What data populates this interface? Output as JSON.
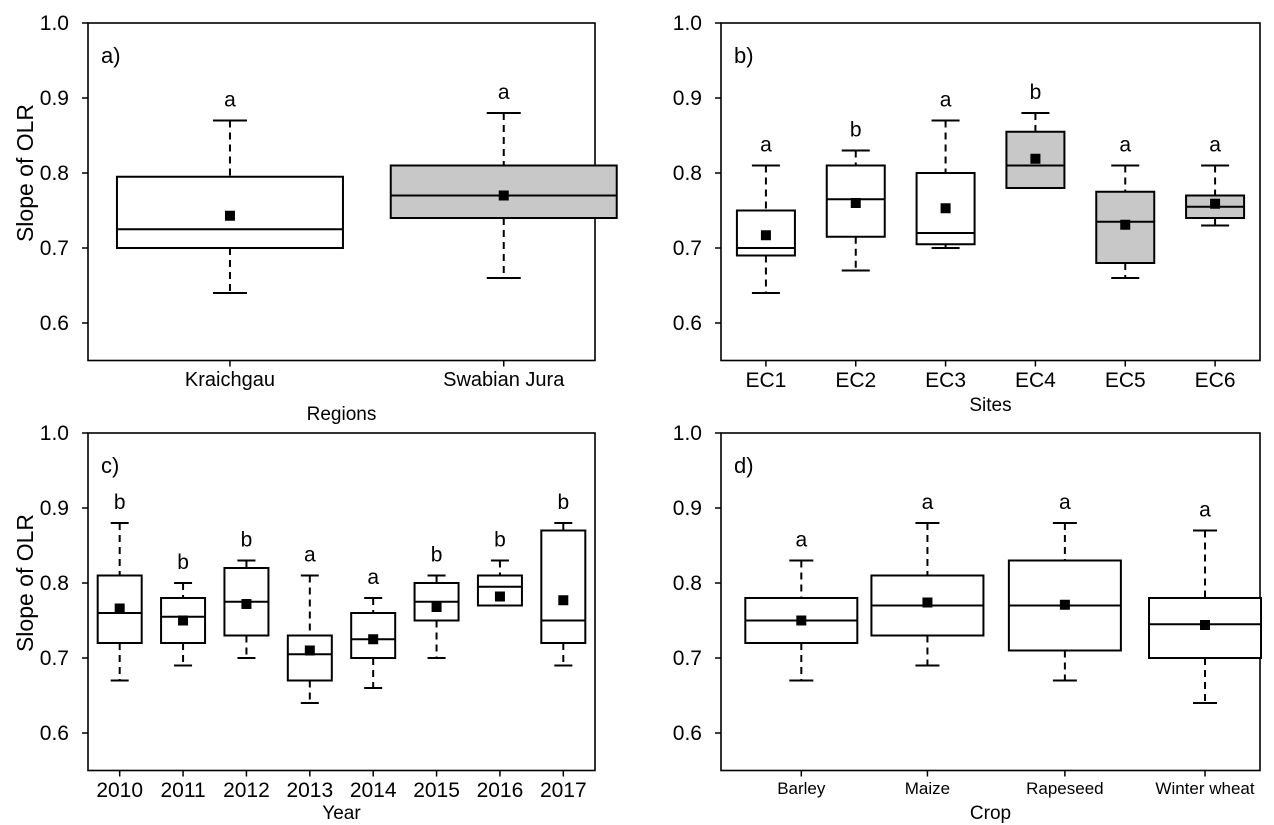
{
  "y_axis_label": "Slope of OLR",
  "chart_data": [
    {
      "type": "boxplot",
      "panel_label": "a)",
      "xlabel": "Regions",
      "ylabel": "Slope of OLR",
      "ylim": [
        0.55,
        1.0
      ],
      "yticks": [
        0.6,
        0.7,
        0.8,
        0.9,
        1.0
      ],
      "ytick_labels": [
        "0.6",
        "0.7",
        "0.8",
        "0.9",
        "1.0"
      ],
      "categories": [
        "Kraichgau",
        "Swabian Jura"
      ],
      "boxes": [
        {
          "category": "Kraichgau",
          "min": 0.64,
          "q1": 0.7,
          "median": 0.725,
          "q3": 0.795,
          "max": 0.87,
          "mean": 0.743,
          "letter": "a",
          "fill": "#ffffff"
        },
        {
          "category": "Swabian Jura",
          "min": 0.66,
          "q1": 0.74,
          "median": 0.77,
          "q3": 0.81,
          "max": 0.88,
          "mean": 0.77,
          "letter": "a",
          "fill": "#c8c8c8"
        }
      ]
    },
    {
      "type": "boxplot",
      "panel_label": "b)",
      "xlabel": "Sites",
      "ylabel": "",
      "ylim": [
        0.55,
        1.0
      ],
      "yticks": [
        0.6,
        0.7,
        0.8,
        0.9,
        1.0
      ],
      "ytick_labels": [
        "0.6",
        "0.7",
        "0.8",
        "0.9",
        "1.0"
      ],
      "categories": [
        "EC1",
        "EC2",
        "EC3",
        "EC4",
        "EC5",
        "EC6"
      ],
      "boxes": [
        {
          "category": "EC1",
          "min": 0.64,
          "q1": 0.69,
          "median": 0.7,
          "q3": 0.75,
          "max": 0.81,
          "mean": 0.717,
          "letter": "a",
          "fill": "#ffffff"
        },
        {
          "category": "EC2",
          "min": 0.67,
          "q1": 0.715,
          "median": 0.765,
          "q3": 0.81,
          "max": 0.83,
          "mean": 0.76,
          "letter": "b",
          "fill": "#ffffff"
        },
        {
          "category": "EC3",
          "min": 0.7,
          "q1": 0.705,
          "median": 0.72,
          "q3": 0.8,
          "max": 0.87,
          "mean": 0.753,
          "letter": "a",
          "fill": "#ffffff"
        },
        {
          "category": "EC4",
          "min": 0.78,
          "q1": 0.78,
          "median": 0.81,
          "q3": 0.855,
          "max": 0.88,
          "mean": 0.819,
          "letter": "b",
          "fill": "#c8c8c8"
        },
        {
          "category": "EC5",
          "min": 0.66,
          "q1": 0.68,
          "median": 0.735,
          "q3": 0.775,
          "max": 0.81,
          "mean": 0.731,
          "letter": "a",
          "fill": "#c8c8c8"
        },
        {
          "category": "EC6",
          "min": 0.73,
          "q1": 0.74,
          "median": 0.755,
          "q3": 0.77,
          "max": 0.81,
          "mean": 0.759,
          "letter": "a",
          "fill": "#c8c8c8"
        }
      ]
    },
    {
      "type": "boxplot",
      "panel_label": "c)",
      "xlabel": "Year",
      "ylabel": "Slope of OLR",
      "ylim": [
        0.55,
        1.0
      ],
      "yticks": [
        0.6,
        0.7,
        0.8,
        0.9,
        1.0
      ],
      "ytick_labels": [
        "0.6",
        "0.7",
        "0.8",
        "0.9",
        "1.0"
      ],
      "categories": [
        "2010",
        "2011",
        "2012",
        "2013",
        "2014",
        "2015",
        "2016",
        "2017"
      ],
      "boxes": [
        {
          "category": "2010",
          "min": 0.67,
          "q1": 0.72,
          "median": 0.76,
          "q3": 0.81,
          "max": 0.88,
          "mean": 0.766,
          "letter": "b",
          "fill": "#ffffff"
        },
        {
          "category": "2011",
          "min": 0.69,
          "q1": 0.72,
          "median": 0.755,
          "q3": 0.78,
          "max": 0.8,
          "mean": 0.75,
          "letter": "b",
          "fill": "#ffffff"
        },
        {
          "category": "2012",
          "min": 0.7,
          "q1": 0.73,
          "median": 0.775,
          "q3": 0.82,
          "max": 0.83,
          "mean": 0.772,
          "letter": "b",
          "fill": "#ffffff"
        },
        {
          "category": "2013",
          "min": 0.64,
          "q1": 0.67,
          "median": 0.705,
          "q3": 0.73,
          "max": 0.81,
          "mean": 0.71,
          "letter": "a",
          "fill": "#ffffff"
        },
        {
          "category": "2014",
          "min": 0.66,
          "q1": 0.7,
          "median": 0.725,
          "q3": 0.76,
          "max": 0.78,
          "mean": 0.725,
          "letter": "a",
          "fill": "#ffffff"
        },
        {
          "category": "2015",
          "min": 0.7,
          "q1": 0.75,
          "median": 0.775,
          "q3": 0.8,
          "max": 0.81,
          "mean": 0.768,
          "letter": "b",
          "fill": "#ffffff"
        },
        {
          "category": "2016",
          "min": 0.77,
          "q1": 0.77,
          "median": 0.795,
          "q3": 0.81,
          "max": 0.83,
          "mean": 0.782,
          "letter": "b",
          "fill": "#ffffff"
        },
        {
          "category": "2017",
          "min": 0.69,
          "q1": 0.72,
          "median": 0.75,
          "q3": 0.87,
          "max": 0.88,
          "mean": 0.777,
          "letter": "b",
          "fill": "#ffffff"
        }
      ]
    },
    {
      "type": "boxplot",
      "panel_label": "d)",
      "xlabel": "Crop",
      "ylabel": "",
      "ylim": [
        0.55,
        1.0
      ],
      "yticks": [
        0.6,
        0.7,
        0.8,
        0.9,
        1.0
      ],
      "ytick_labels": [
        "0.6",
        "0.7",
        "0.8",
        "0.9",
        "1.0"
      ],
      "categories": [
        "Barley",
        "Maize",
        "Rapeseed",
        "Winter wheat"
      ],
      "boxes": [
        {
          "category": "Barley",
          "min": 0.67,
          "q1": 0.72,
          "median": 0.75,
          "q3": 0.78,
          "max": 0.83,
          "mean": 0.75,
          "letter": "a",
          "fill": "#ffffff"
        },
        {
          "category": "Maize",
          "min": 0.69,
          "q1": 0.73,
          "median": 0.77,
          "q3": 0.81,
          "max": 0.88,
          "mean": 0.774,
          "letter": "a",
          "fill": "#ffffff"
        },
        {
          "category": "Rapeseed",
          "min": 0.67,
          "q1": 0.71,
          "median": 0.77,
          "q3": 0.83,
          "max": 0.88,
          "mean": 0.771,
          "letter": "a",
          "fill": "#ffffff"
        },
        {
          "category": "Winter wheat",
          "min": 0.64,
          "q1": 0.7,
          "median": 0.745,
          "q3": 0.78,
          "max": 0.87,
          "mean": 0.744,
          "letter": "a",
          "fill": "#ffffff"
        }
      ]
    }
  ]
}
